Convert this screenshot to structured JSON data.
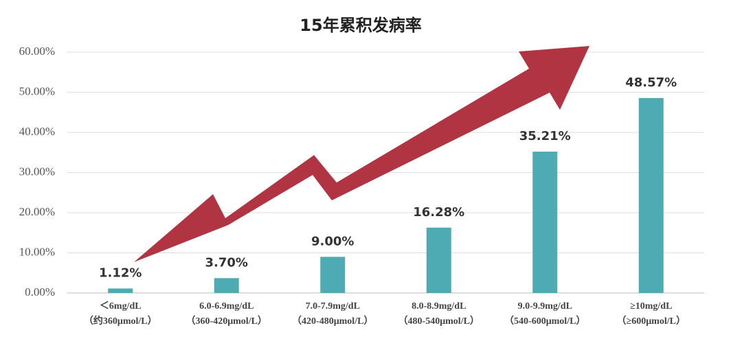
{
  "chart_data": {
    "type": "bar",
    "title": "15年累积发病率",
    "categories": [
      "＜6mg/dL",
      "6.0-6.9mg/dL",
      "7.0-7.9mg/dL",
      "8.0-8.9mg/dL",
      "9.0-9.9mg/dL",
      "≥10mg/dL"
    ],
    "category_sublabels": [
      "（约360μmol/L）",
      "（360-420μmol/L）",
      "（420-480μmol/L）",
      "（480-540μmol/L）",
      "（540-600μmol/L）",
      "（≥600μmol/L）"
    ],
    "values": [
      1.12,
      3.7,
      9.0,
      16.28,
      35.21,
      48.57
    ],
    "value_labels": [
      "1.12%",
      "3.70%",
      "9.00%",
      "16.28%",
      "35.21%",
      "48.57%"
    ],
    "color": "#4eabb3",
    "ylim": [
      0,
      60
    ],
    "yticks": [
      {
        "value": 0,
        "label": "0.00%"
      },
      {
        "value": 10,
        "label": "10.00%"
      },
      {
        "value": 20,
        "label": "20.00%"
      },
      {
        "value": 30,
        "label": "30.00%"
      },
      {
        "value": 40,
        "label": "40.00%"
      },
      {
        "value": 50,
        "label": "50.00%"
      },
      {
        "value": 60,
        "label": "60.00%"
      }
    ],
    "grid": true
  }
}
